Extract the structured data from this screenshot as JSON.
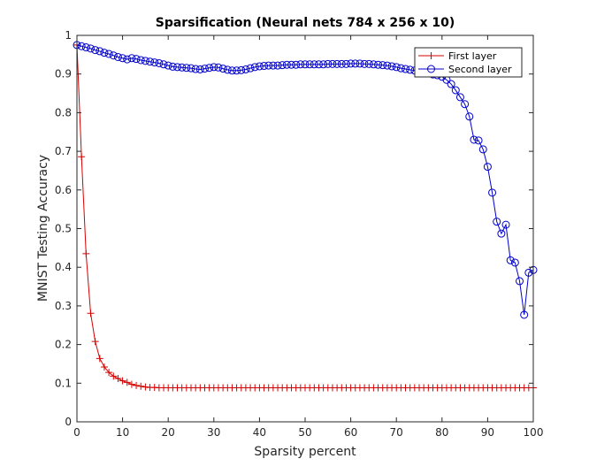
{
  "chart_data": {
    "type": "line",
    "title": "Sparsification (Neural nets 784 x 256 x 10)",
    "xlabel": "Sparsity percent",
    "ylabel": "MNIST Testing Accuracy",
    "xlim": [
      0,
      100
    ],
    "ylim": [
      0,
      1
    ],
    "xticks": [
      0,
      10,
      20,
      30,
      40,
      50,
      60,
      70,
      80,
      90,
      100
    ],
    "xtick_labels": [
      "0",
      "10",
      "20",
      "30",
      "40",
      "50",
      "60",
      "70",
      "80",
      "90",
      "100"
    ],
    "yticks": [
      0,
      0.1,
      0.2,
      0.3,
      0.4,
      0.5,
      0.6,
      0.7,
      0.8,
      0.9,
      1
    ],
    "ytick_labels": [
      "0",
      "0.1",
      "0.2",
      "0.3",
      "0.4",
      "0.5",
      "0.6",
      "0.7",
      "0.8",
      "0.9",
      "1"
    ],
    "grid": false,
    "legend_position": "top-right",
    "series": [
      {
        "name": "First layer",
        "color": "#d40000",
        "marker": "plus",
        "x": [
          0,
          1,
          2,
          3,
          4,
          5,
          6,
          7,
          8,
          9,
          10,
          11,
          12,
          13,
          14,
          15,
          16,
          17,
          18,
          19,
          20,
          21,
          22,
          23,
          24,
          25,
          26,
          27,
          28,
          29,
          30,
          31,
          32,
          33,
          34,
          35,
          36,
          37,
          38,
          39,
          40,
          41,
          42,
          43,
          44,
          45,
          46,
          47,
          48,
          49,
          50,
          51,
          52,
          53,
          54,
          55,
          56,
          57,
          58,
          59,
          60,
          61,
          62,
          63,
          64,
          65,
          66,
          67,
          68,
          69,
          70,
          71,
          72,
          73,
          74,
          75,
          76,
          77,
          78,
          79,
          80,
          81,
          82,
          83,
          84,
          85,
          86,
          87,
          88,
          89,
          90,
          91,
          92,
          93,
          94,
          95,
          96,
          97,
          98,
          99,
          100
        ],
        "y": [
          0.975,
          0.686,
          0.435,
          0.281,
          0.208,
          0.164,
          0.142,
          0.128,
          0.118,
          0.112,
          0.106,
          0.102,
          0.097,
          0.094,
          0.092,
          0.09,
          0.089,
          0.089,
          0.088,
          0.088,
          0.088,
          0.088,
          0.088,
          0.088,
          0.088,
          0.088,
          0.088,
          0.088,
          0.088,
          0.088,
          0.088,
          0.088,
          0.088,
          0.088,
          0.088,
          0.088,
          0.088,
          0.088,
          0.088,
          0.088,
          0.088,
          0.088,
          0.088,
          0.088,
          0.088,
          0.088,
          0.088,
          0.088,
          0.088,
          0.088,
          0.088,
          0.088,
          0.088,
          0.088,
          0.088,
          0.088,
          0.088,
          0.088,
          0.088,
          0.088,
          0.088,
          0.088,
          0.088,
          0.088,
          0.088,
          0.088,
          0.088,
          0.088,
          0.088,
          0.088,
          0.088,
          0.088,
          0.088,
          0.088,
          0.088,
          0.088,
          0.088,
          0.088,
          0.088,
          0.088,
          0.088,
          0.088,
          0.088,
          0.088,
          0.088,
          0.088,
          0.088,
          0.088,
          0.088,
          0.088,
          0.088,
          0.088,
          0.088,
          0.088,
          0.088,
          0.088,
          0.088,
          0.088,
          0.088,
          0.088,
          0.088
        ]
      },
      {
        "name": "Second layer",
        "color": "#0000cc",
        "marker": "circle",
        "x": [
          0,
          1,
          2,
          3,
          4,
          5,
          6,
          7,
          8,
          9,
          10,
          11,
          12,
          13,
          14,
          15,
          16,
          17,
          18,
          19,
          20,
          21,
          22,
          23,
          24,
          25,
          26,
          27,
          28,
          29,
          30,
          31,
          32,
          33,
          34,
          35,
          36,
          37,
          38,
          39,
          40,
          41,
          42,
          43,
          44,
          45,
          46,
          47,
          48,
          49,
          50,
          51,
          52,
          53,
          54,
          55,
          56,
          57,
          58,
          59,
          60,
          61,
          62,
          63,
          64,
          65,
          66,
          67,
          68,
          69,
          70,
          71,
          72,
          73,
          74,
          75,
          76,
          77,
          78,
          79,
          80,
          81,
          82,
          83,
          84,
          85,
          86,
          87,
          88,
          89,
          90,
          91,
          92,
          93,
          94,
          95,
          96,
          97,
          98,
          99,
          100
        ],
        "y": [
          0.975,
          0.972,
          0.969,
          0.966,
          0.962,
          0.959,
          0.955,
          0.952,
          0.948,
          0.944,
          0.941,
          0.938,
          0.941,
          0.939,
          0.936,
          0.934,
          0.932,
          0.93,
          0.928,
          0.925,
          0.922,
          0.919,
          0.918,
          0.917,
          0.916,
          0.915,
          0.913,
          0.912,
          0.914,
          0.916,
          0.918,
          0.917,
          0.914,
          0.911,
          0.909,
          0.909,
          0.91,
          0.912,
          0.915,
          0.918,
          0.92,
          0.921,
          0.922,
          0.922,
          0.922,
          0.923,
          0.924,
          0.924,
          0.924,
          0.925,
          0.925,
          0.925,
          0.925,
          0.925,
          0.925,
          0.926,
          0.926,
          0.926,
          0.926,
          0.926,
          0.927,
          0.927,
          0.927,
          0.926,
          0.926,
          0.925,
          0.924,
          0.923,
          0.922,
          0.92,
          0.918,
          0.915,
          0.913,
          0.911,
          0.909,
          0.907,
          0.905,
          0.902,
          0.899,
          0.897,
          0.893,
          0.885,
          0.874,
          0.858,
          0.84,
          0.822,
          0.79,
          0.73,
          0.728,
          0.705,
          0.66,
          0.593,
          0.518,
          0.487,
          0.51,
          0.418,
          0.412,
          0.364,
          0.277,
          0.386,
          0.393
        ]
      }
    ]
  }
}
